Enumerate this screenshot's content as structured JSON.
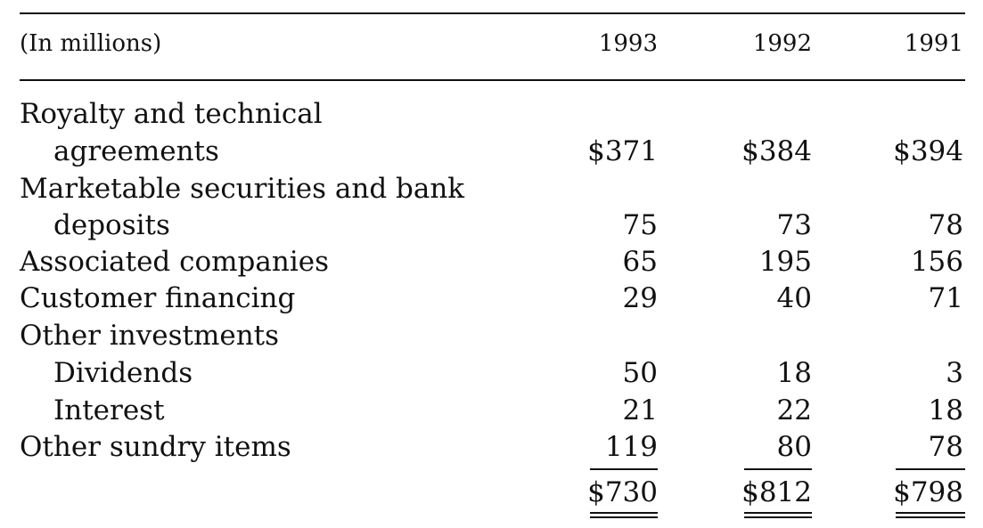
{
  "table": {
    "header": {
      "label": "(In millions)",
      "years": [
        "1993",
        "1992",
        "1991"
      ]
    },
    "rows": [
      {
        "label": "Royalty and technical",
        "v1": "",
        "v2": "",
        "v3": ""
      },
      {
        "label": "agreements",
        "v1": "$371",
        "v2": "$384",
        "v3": "$394"
      },
      {
        "label": "Marketable securities and bank",
        "v1": "",
        "v2": "",
        "v3": ""
      },
      {
        "label": "deposits",
        "v1": "75",
        "v2": "73",
        "v3": "78"
      },
      {
        "label": "Associated companies",
        "v1": "65",
        "v2": "195",
        "v3": "156"
      },
      {
        "label": "Customer financing",
        "v1": "29",
        "v2": "40",
        "v3": "71"
      },
      {
        "label": "Other investments",
        "v1": "",
        "v2": "",
        "v3": ""
      },
      {
        "label": "Dividends",
        "v1": "50",
        "v2": "18",
        "v3": "3"
      },
      {
        "label": "Interest",
        "v1": "21",
        "v2": "22",
        "v3": "18"
      },
      {
        "label": "Other sundry items",
        "v1": "119",
        "v2": "80",
        "v3": "78"
      }
    ],
    "totals": {
      "v1": "$730",
      "v2": "$812",
      "v3": "$798"
    }
  }
}
